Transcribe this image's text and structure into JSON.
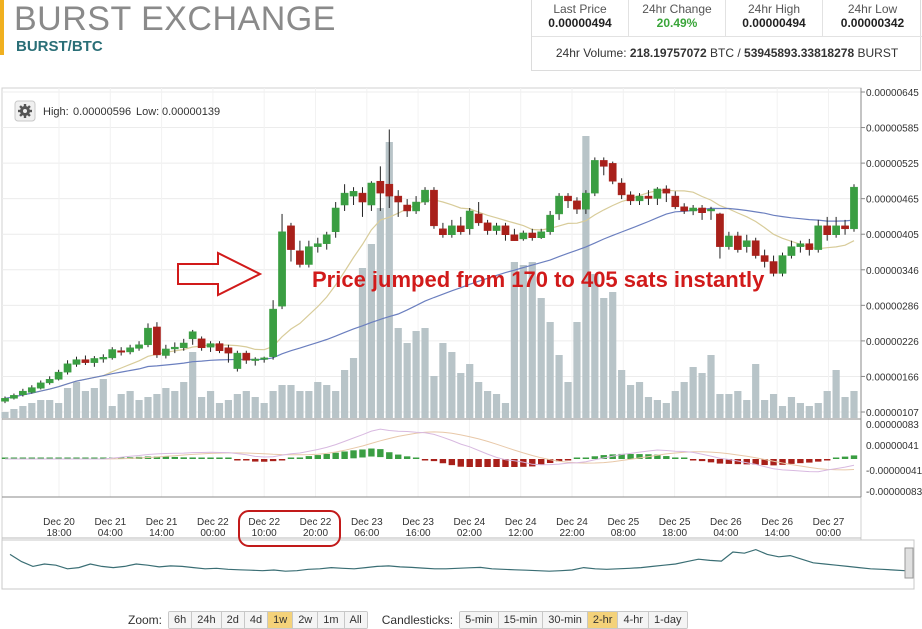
{
  "header": {
    "exchange_title": "BURST EXCHANGE",
    "pair": "BURST/BTC",
    "brand_color": "#f0b020"
  },
  "stats": [
    {
      "label": "Last Price",
      "value": "0.00000494"
    },
    {
      "label": "24hr Change",
      "value": "20.49%"
    },
    {
      "label": "24hr High",
      "value": "0.00000494"
    },
    {
      "label": "24hr Low",
      "value": "0.00000342"
    }
  ],
  "volume": {
    "label": "24hr Volume:",
    "btc": "218.19757072",
    "btc_unit": "BTC /",
    "burst": "53945893.33818278",
    "burst_unit": "BURST"
  },
  "chart_info": {
    "settings_icon": "gear-icon",
    "high_label": "High:",
    "high_value": "0.00000596",
    "low_label": "Low:",
    "low_value": "0.00000139"
  },
  "annotation": {
    "text": "Price jumped from 170 to 405 sats instantly",
    "color": "#d11a1a",
    "arrow_icon": "right-arrow-icon"
  },
  "zoom": {
    "label": "Zoom:",
    "options": [
      "6h",
      "24h",
      "2d",
      "4d",
      "1w",
      "2w",
      "1m",
      "All"
    ],
    "active": "1w"
  },
  "candlesticks": {
    "label": "Candlesticks:",
    "options": [
      "5-min",
      "15-min",
      "30-min",
      "2-hr",
      "4-hr",
      "1-day"
    ],
    "active": "2-hr"
  },
  "colors": {
    "up": "#3a9e42",
    "down": "#a8201a",
    "volume": "#b8c4c8",
    "ma_fast": "#d8cc9a",
    "ma_slow": "#6b7fbf",
    "macd_line": "#d8b9e0",
    "signal_line": "#e8c8a8",
    "highlight_box": "#c21a1a",
    "active_button": "#f4d27a"
  },
  "chart_data": {
    "type": "candlestick",
    "price_axis_ticks": [
      "0.00000645",
      "0.00000585",
      "0.00000525",
      "0.00000465",
      "0.00000405",
      "0.00000346",
      "0.00000286",
      "0.00000226",
      "0.00000166",
      "0.00000107"
    ],
    "indicator_axis_ticks": [
      "0.00000083",
      "0.00000041",
      "-0.00000041",
      "-0.00000083"
    ],
    "x_ticks": [
      {
        "date": "Dec 20",
        "time": "18:00"
      },
      {
        "date": "Dec 21",
        "time": "04:00"
      },
      {
        "date": "Dec 21",
        "time": "14:00"
      },
      {
        "date": "Dec 22",
        "time": "00:00"
      },
      {
        "date": "Dec 22",
        "time": "10:00"
      },
      {
        "date": "Dec 22",
        "time": "20:00"
      },
      {
        "date": "Dec 23",
        "time": "06:00"
      },
      {
        "date": "Dec 23",
        "time": "16:00"
      },
      {
        "date": "Dec 24",
        "time": "02:00"
      },
      {
        "date": "Dec 24",
        "time": "12:00"
      },
      {
        "date": "Dec 24",
        "time": "22:00"
      },
      {
        "date": "Dec 25",
        "time": "08:00"
      },
      {
        "date": "Dec 25",
        "time": "18:00"
      },
      {
        "date": "Dec 26",
        "time": "04:00"
      },
      {
        "date": "Dec 26",
        "time": "14:00"
      },
      {
        "date": "Dec 27",
        "time": "00:00"
      }
    ],
    "highlighted_ticks": [
      4,
      5
    ],
    "ylim": [
      1.07e-06,
      6.45e-06
    ],
    "candles": [
      [
        1.25,
        1.3,
        1.33,
        1.22
      ],
      [
        1.3,
        1.35,
        1.38,
        1.28
      ],
      [
        1.36,
        1.42,
        1.46,
        1.33
      ],
      [
        1.4,
        1.48,
        1.52,
        1.38
      ],
      [
        1.47,
        1.56,
        1.6,
        1.45
      ],
      [
        1.56,
        1.62,
        1.67,
        1.53
      ],
      [
        1.62,
        1.74,
        1.78,
        1.6
      ],
      [
        1.74,
        1.88,
        1.94,
        1.7
      ],
      [
        1.87,
        1.95,
        2.0,
        1.83
      ],
      [
        1.95,
        1.9,
        2.02,
        1.86
      ],
      [
        1.9,
        1.97,
        2.01,
        1.83
      ],
      [
        1.96,
        1.99,
        2.04,
        1.9
      ],
      [
        1.98,
        2.12,
        2.16,
        1.95
      ],
      [
        2.1,
        2.08,
        2.16,
        2.02
      ],
      [
        2.08,
        2.15,
        2.2,
        2.04
      ],
      [
        2.14,
        2.2,
        2.26,
        2.1
      ],
      [
        2.2,
        2.48,
        2.56,
        2.16
      ],
      [
        2.5,
        2.03,
        2.58,
        1.98
      ],
      [
        2.02,
        2.13,
        2.2,
        1.97
      ],
      [
        2.13,
        2.16,
        2.24,
        2.06
      ],
      [
        2.15,
        2.23,
        2.3,
        2.1
      ],
      [
        2.3,
        2.42,
        2.45,
        2.2
      ],
      [
        2.3,
        2.15,
        2.34,
        2.1
      ],
      [
        2.16,
        2.22,
        2.26,
        2.08
      ],
      [
        2.22,
        2.1,
        2.26,
        2.06
      ],
      [
        2.15,
        2.06,
        2.2,
        1.9
      ],
      [
        1.8,
        2.06,
        2.1,
        1.75
      ],
      [
        2.06,
        1.94,
        2.1,
        1.88
      ],
      [
        1.94,
        1.96,
        1.99,
        1.85
      ],
      [
        1.96,
        1.98,
        2.0,
        1.9
      ],
      [
        2.0,
        2.8,
        2.95,
        1.95
      ],
      [
        2.85,
        4.1,
        4.4,
        2.8
      ],
      [
        4.2,
        3.8,
        4.25,
        3.6
      ],
      [
        3.78,
        3.55,
        3.95,
        3.5
      ],
      [
        3.55,
        3.85,
        3.95,
        3.5
      ],
      [
        3.85,
        3.9,
        4.0,
        3.75
      ],
      [
        3.9,
        4.05,
        4.1,
        3.8
      ],
      [
        4.1,
        4.5,
        4.6,
        4.0
      ],
      [
        4.55,
        4.75,
        4.9,
        4.45
      ],
      [
        4.7,
        4.78,
        4.85,
        4.55
      ],
      [
        4.75,
        4.6,
        4.85,
        4.35
      ],
      [
        4.55,
        4.92,
        4.95,
        4.45
      ],
      [
        4.95,
        4.75,
        5.2,
        4.45
      ],
      [
        4.9,
        4.7,
        5.82,
        4.5
      ],
      [
        4.7,
        4.6,
        4.8,
        4.35
      ],
      [
        4.55,
        4.45,
        4.65,
        4.35
      ],
      [
        4.45,
        4.6,
        4.7,
        4.4
      ],
      [
        4.6,
        4.8,
        4.85,
        4.55
      ],
      [
        4.8,
        4.2,
        4.85,
        4.15
      ],
      [
        4.15,
        4.05,
        4.25,
        4.0
      ],
      [
        4.05,
        4.2,
        4.3,
        4.0
      ],
      [
        4.2,
        4.1,
        4.35,
        4.05
      ],
      [
        4.15,
        4.45,
        4.5,
        4.05
      ],
      [
        4.4,
        4.25,
        4.6,
        4.2
      ],
      [
        4.25,
        4.12,
        4.3,
        4.05
      ],
      [
        4.12,
        4.2,
        4.25,
        4.05
      ],
      [
        4.2,
        4.05,
        4.25,
        3.95
      ],
      [
        4.05,
        3.95,
        4.15,
        3.95
      ],
      [
        3.98,
        4.08,
        4.12,
        3.95
      ],
      [
        4.08,
        4.0,
        4.15,
        3.95
      ],
      [
        4.0,
        4.1,
        4.15,
        3.98
      ],
      [
        4.1,
        4.38,
        4.45,
        4.05
      ],
      [
        4.4,
        4.7,
        4.75,
        4.3
      ],
      [
        4.7,
        4.62,
        4.75,
        4.5
      ],
      [
        4.62,
        4.48,
        4.68,
        4.4
      ],
      [
        4.48,
        4.75,
        4.8,
        4.4
      ],
      [
        4.75,
        5.3,
        5.35,
        4.7
      ],
      [
        5.3,
        5.2,
        5.35,
        5.05
      ],
      [
        5.25,
        4.95,
        5.28,
        4.9
      ],
      [
        4.92,
        4.72,
        5.0,
        4.65
      ],
      [
        4.72,
        4.62,
        4.78,
        4.55
      ],
      [
        4.62,
        4.7,
        4.75,
        4.55
      ],
      [
        4.7,
        4.66,
        4.8,
        4.55
      ],
      [
        4.66,
        4.82,
        4.85,
        4.55
      ],
      [
        4.82,
        4.75,
        4.88,
        4.6
      ],
      [
        4.7,
        4.52,
        4.78,
        4.48
      ],
      [
        4.52,
        4.45,
        4.58,
        4.4
      ],
      [
        4.45,
        4.5,
        4.55,
        4.38
      ],
      [
        4.5,
        4.42,
        4.55,
        4.3
      ],
      [
        4.45,
        4.48,
        4.52,
        4.3
      ],
      [
        4.4,
        3.85,
        4.42,
        3.65
      ],
      [
        3.85,
        4.03,
        4.1,
        3.8
      ],
      [
        4.03,
        3.8,
        4.1,
        3.75
      ],
      [
        3.85,
        3.95,
        4.05,
        3.75
      ],
      [
        3.95,
        3.7,
        4.0,
        3.65
      ],
      [
        3.7,
        3.6,
        3.8,
        3.5
      ],
      [
        3.6,
        3.4,
        3.7,
        3.35
      ],
      [
        3.4,
        3.7,
        3.75,
        3.35
      ],
      [
        3.7,
        3.85,
        3.95,
        3.65
      ],
      [
        3.85,
        3.9,
        3.95,
        3.75
      ],
      [
        3.9,
        3.8,
        3.98,
        3.7
      ],
      [
        3.8,
        4.2,
        4.3,
        3.75
      ],
      [
        4.2,
        4.05,
        4.35,
        3.95
      ],
      [
        4.05,
        4.2,
        4.35,
        4.0
      ],
      [
        4.2,
        4.15,
        4.3,
        4.05
      ],
      [
        4.15,
        4.85,
        4.9,
        4.1
      ]
    ],
    "candle_units": "price x 0.000001 BTC (open, close, high, low)",
    "volume": [
      0.02,
      0.03,
      0.04,
      0.05,
      0.06,
      0.06,
      0.05,
      0.1,
      0.12,
      0.09,
      0.1,
      0.13,
      0.04,
      0.08,
      0.09,
      0.06,
      0.07,
      0.08,
      0.1,
      0.09,
      0.12,
      0.22,
      0.07,
      0.09,
      0.05,
      0.06,
      0.08,
      0.09,
      0.07,
      0.05,
      0.09,
      0.11,
      0.11,
      0.09,
      0.09,
      0.12,
      0.11,
      0.09,
      0.16,
      0.2,
      0.5,
      0.58,
      0.7,
      0.92,
      0.3,
      0.25,
      0.29,
      0.3,
      0.14,
      0.25,
      0.22,
      0.15,
      0.18,
      0.12,
      0.09,
      0.08,
      0.05,
      0.52,
      0.51,
      0.52,
      0.4,
      0.32,
      0.21,
      0.12,
      0.32,
      0.94,
      0.48,
      0.4,
      0.42,
      0.16,
      0.11,
      0.12,
      0.07,
      0.06,
      0.05,
      0.09,
      0.12,
      0.17,
      0.15,
      0.21,
      0.08,
      0.08,
      0.09,
      0.06,
      0.18,
      0.06,
      0.08,
      0.04,
      0.07,
      0.05,
      0.04,
      0.05,
      0.09,
      0.16,
      0.07,
      0.09
    ],
    "volume_units": "relative to panel height"
  }
}
